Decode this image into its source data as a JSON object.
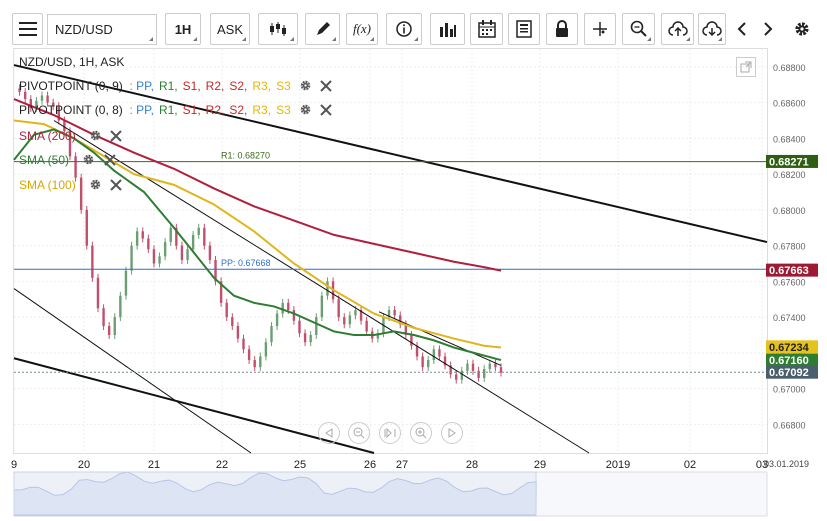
{
  "toolbar": {
    "symbol": "NZD/USD",
    "timeframe": "1H",
    "price_type": "ASK",
    "function_label": "f(x)"
  },
  "chart_title": "NZD/USD, 1H, ASK",
  "legend": {
    "pivot1": "PIVOTPOINT (0, 9)",
    "pivot2": "PIVOTPOINT (0, 8)",
    "pivot_items": [
      "PP",
      "R1",
      "S1",
      "R2",
      "S2",
      "R3",
      "S3"
    ],
    "pivot_colors": [
      "#2f7fd6",
      "#2e7d32",
      "#c62828",
      "#c62828",
      "#c62828",
      "#e6b800",
      "#e6b800"
    ],
    "sma200": "SMA (200)",
    "sma50": "SMA (50)",
    "sma100": "SMA (100)"
  },
  "chart_data": {
    "type": "line",
    "title": "NZD/USD, 1H, ASK",
    "ylim": [
      0.6664,
      0.689
    ],
    "y_ticks": [
      "0.68800",
      "0.68600",
      "0.68400",
      "0.68200",
      "0.68000",
      "0.67800",
      "0.67600",
      "0.67400",
      "0.67200",
      "0.67000",
      "0.66800"
    ],
    "y_tick_values": [
      0.688,
      0.686,
      0.684,
      0.682,
      0.68,
      0.678,
      0.676,
      0.674,
      0.672,
      0.67,
      0.668
    ],
    "x_ticks": [
      "9",
      "20",
      "21",
      "22",
      "25",
      "26",
      "27",
      "28",
      "29",
      "2019",
      "02",
      "03"
    ],
    "x_tick_index": [
      0,
      70,
      140,
      208,
      286,
      356,
      388,
      458,
      526,
      604,
      676,
      748
    ],
    "date_label": "03.01.2019",
    "levels": [
      {
        "name": "R1",
        "label": "R1: 0.68270",
        "value": 0.6827,
        "color": "#3a6b1a"
      },
      {
        "name": "PP",
        "label": "PP: 0.67668",
        "value": 0.67668,
        "color": "#2f6fcf"
      }
    ],
    "price_badges": [
      {
        "label": "0.68271",
        "value": 0.68271,
        "color": "#2e5e12"
      },
      {
        "label": "0.67663",
        "value": 0.67663,
        "color": "#9c1b33"
      },
      {
        "label": "0.67234",
        "value": 0.67234,
        "color": "#e6c21e"
      },
      {
        "label": "0.67160",
        "value": 0.6716,
        "color": "#2e7d32"
      },
      {
        "label": "0.67092",
        "value": 0.67092,
        "color": "#4a5f6e"
      }
    ],
    "series": [
      {
        "name": "SMA (200)",
        "color": "#b0203d",
        "x": [
          0,
          40,
          80,
          120,
          160,
          200,
          240,
          280,
          320,
          360,
          400,
          440,
          470,
          487
        ],
        "y": [
          0.6862,
          0.6853,
          0.6842,
          0.6832,
          0.6823,
          0.6812,
          0.6802,
          0.6794,
          0.6786,
          0.6781,
          0.6776,
          0.6771,
          0.6768,
          0.6766
        ]
      },
      {
        "name": "SMA (100)",
        "color": "#e0b61e",
        "x": [
          0,
          30,
          60,
          90,
          120,
          160,
          200,
          240,
          280,
          320,
          360,
          400,
          440,
          470,
          487
        ],
        "y": [
          0.685,
          0.6848,
          0.684,
          0.683,
          0.682,
          0.6814,
          0.6803,
          0.6788,
          0.677,
          0.6755,
          0.6742,
          0.6734,
          0.6728,
          0.6724,
          0.6723
        ]
      },
      {
        "name": "SMA (50)",
        "color": "#2e7d32",
        "x": [
          0,
          20,
          40,
          60,
          80,
          100,
          130,
          160,
          180,
          200,
          220,
          240,
          260,
          280,
          300,
          320,
          340,
          360,
          380,
          400,
          420,
          440,
          460,
          487
        ],
        "y": [
          0.6828,
          0.6842,
          0.6845,
          0.684,
          0.6832,
          0.6822,
          0.681,
          0.679,
          0.6776,
          0.6762,
          0.6752,
          0.6748,
          0.6746,
          0.6742,
          0.6737,
          0.6732,
          0.673,
          0.673,
          0.6732,
          0.673,
          0.6727,
          0.6723,
          0.672,
          0.6716
        ]
      }
    ],
    "trend_lines": [
      {
        "from": [
          0,
          0.6881
        ],
        "to": [
          753,
          0.6782
        ],
        "width": 2
      },
      {
        "from": [
          40,
          0.685
        ],
        "to": [
          575,
          0.6664
        ],
        "width": 1
      },
      {
        "from": [
          0,
          0.6756
        ],
        "to": [
          237,
          0.6664
        ],
        "width": 1
      },
      {
        "from": [
          0,
          0.6717
        ],
        "to": [
          360,
          0.6664
        ],
        "width": 2
      },
      {
        "from": [
          365,
          0.6743
        ],
        "to": [
          487,
          0.6713
        ],
        "width": 1
      }
    ],
    "candles_close": [
      0.6868,
      0.6866,
      0.6862,
      0.6857,
      0.6861,
      0.6864,
      0.686,
      0.6858,
      0.685,
      0.6844,
      0.683,
      0.6818,
      0.68,
      0.678,
      0.6762,
      0.6745,
      0.6735,
      0.673,
      0.674,
      0.6752,
      0.6766,
      0.678,
      0.6788,
      0.6784,
      0.6778,
      0.677,
      0.6774,
      0.6782,
      0.679,
      0.678,
      0.6772,
      0.6778,
      0.6786,
      0.679,
      0.678,
      0.6772,
      0.676,
      0.6748,
      0.674,
      0.6735,
      0.6728,
      0.6722,
      0.6716,
      0.6712,
      0.6718,
      0.6726,
      0.6735,
      0.6742,
      0.6748,
      0.6744,
      0.6738,
      0.6731,
      0.6726,
      0.673,
      0.674,
      0.6752,
      0.676,
      0.675,
      0.674,
      0.6736,
      0.6741,
      0.6744,
      0.6738,
      0.6732,
      0.6728,
      0.6731,
      0.674,
      0.6744,
      0.6741,
      0.6736,
      0.673,
      0.6724,
      0.6718,
      0.6712,
      0.6716,
      0.6722,
      0.6718,
      0.6713,
      0.6708,
      0.6705,
      0.671,
      0.6714,
      0.671,
      0.6706,
      0.6711,
      0.6714,
      0.6712,
      0.6709
    ]
  }
}
